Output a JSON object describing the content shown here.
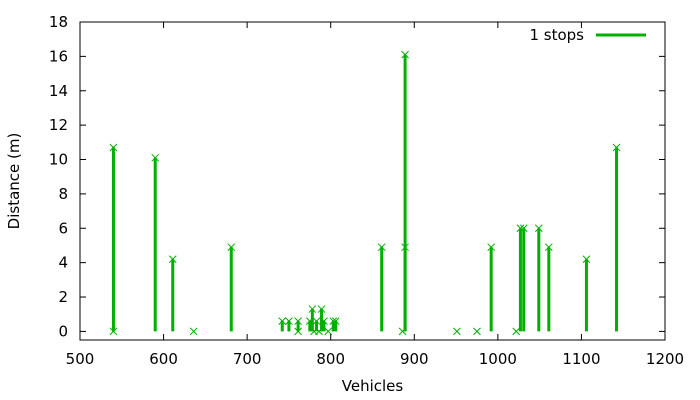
{
  "chart_data": {
    "type": "impulse",
    "xlabel": "Vehicles",
    "ylabel": "Distance (m)",
    "xlim": [
      500,
      1200
    ],
    "ylim": [
      -0.5,
      18
    ],
    "x_ticks": [
      500,
      600,
      700,
      800,
      900,
      1000,
      1100,
      1200
    ],
    "y_ticks": [
      0,
      2,
      4,
      6,
      8,
      10,
      12,
      14,
      16,
      18
    ],
    "grid": false,
    "legend_position": "top-right",
    "series": [
      {
        "name": "1 stops",
        "color": "#00b000",
        "points": [
          {
            "x": 540,
            "y": 10.7
          },
          {
            "x": 540,
            "y": 0
          },
          {
            "x": 590,
            "y": 10.1
          },
          {
            "x": 611,
            "y": 4.2
          },
          {
            "x": 636,
            "y": 0
          },
          {
            "x": 681,
            "y": 4.9
          },
          {
            "x": 742,
            "y": 0.6
          },
          {
            "x": 750,
            "y": 0.6
          },
          {
            "x": 761,
            "y": 0.6
          },
          {
            "x": 761,
            "y": 0
          },
          {
            "x": 775,
            "y": 0.6
          },
          {
            "x": 778,
            "y": 1.3
          },
          {
            "x": 780,
            "y": 0
          },
          {
            "x": 783,
            "y": 0.6
          },
          {
            "x": 786,
            "y": 0
          },
          {
            "x": 789,
            "y": 1.3
          },
          {
            "x": 792,
            "y": 0.6
          },
          {
            "x": 797,
            "y": 0
          },
          {
            "x": 803,
            "y": 0.6
          },
          {
            "x": 806,
            "y": 0.6
          },
          {
            "x": 861,
            "y": 4.9
          },
          {
            "x": 886,
            "y": 0
          },
          {
            "x": 889,
            "y": 16.1
          },
          {
            "x": 889,
            "y": 4.9
          },
          {
            "x": 951,
            "y": 0
          },
          {
            "x": 975,
            "y": 0
          },
          {
            "x": 992,
            "y": 4.9
          },
          {
            "x": 1022,
            "y": 0
          },
          {
            "x": 1027,
            "y": 6.0
          },
          {
            "x": 1031,
            "y": 6.0
          },
          {
            "x": 1049,
            "y": 6.0
          },
          {
            "x": 1061,
            "y": 4.9
          },
          {
            "x": 1106,
            "y": 4.2
          },
          {
            "x": 1142,
            "y": 10.7
          }
        ]
      }
    ]
  }
}
